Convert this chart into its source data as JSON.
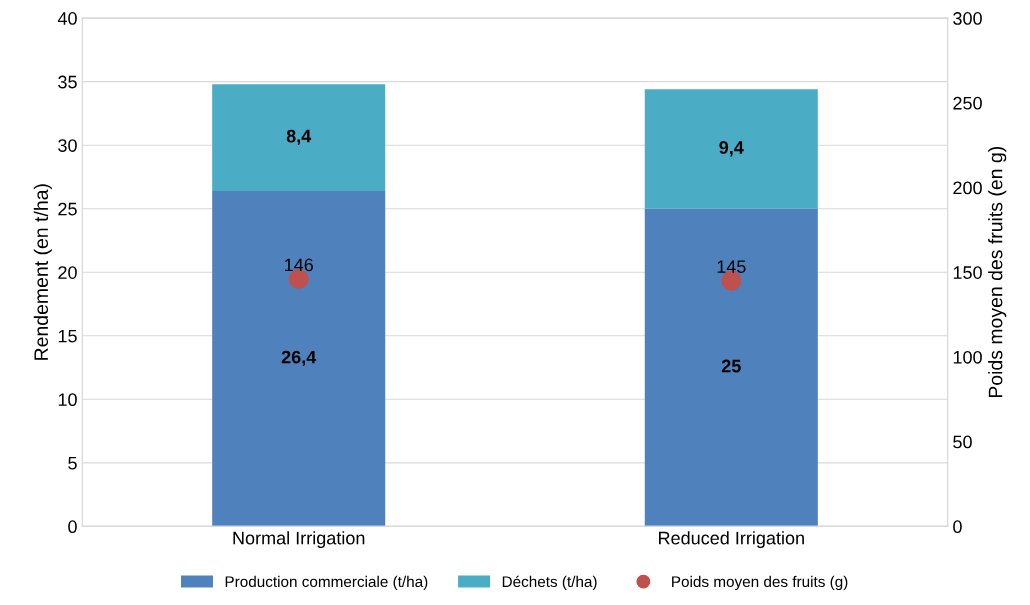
{
  "chart_data": {
    "type": "bar",
    "stacked": true,
    "categories": [
      "Normal Irrigation",
      "Reduced Irrigation"
    ],
    "series": [
      {
        "name": "Production commerciale (t/ha)",
        "color": "#4f81bd",
        "values": [
          26.4,
          25
        ],
        "value_labels": [
          "26,4",
          "25"
        ]
      },
      {
        "name": "Déchets (t/ha)",
        "color": "#4bacc6",
        "values": [
          8.4,
          9.4
        ],
        "value_labels": [
          "8,4",
          "9,4"
        ]
      },
      {
        "name": "Poids moyen des fruits (g)",
        "color": "#c0504d",
        "type": "scatter",
        "axis": "y2",
        "marker": "circle",
        "values": [
          146,
          145
        ],
        "value_labels": [
          "146",
          "145"
        ]
      }
    ],
    "ylabel": "Rendement (en t/ha)",
    "y2label": "Poids moyen des fruits (en g)",
    "ylim": [
      0,
      40
    ],
    "yticks": [
      0,
      5,
      10,
      15,
      20,
      25,
      30,
      35,
      40
    ],
    "y2lim": [
      0,
      300
    ],
    "y2ticks": [
      0,
      50,
      100,
      150,
      200,
      250,
      300
    ],
    "grid": "y",
    "legend": "bottom"
  }
}
